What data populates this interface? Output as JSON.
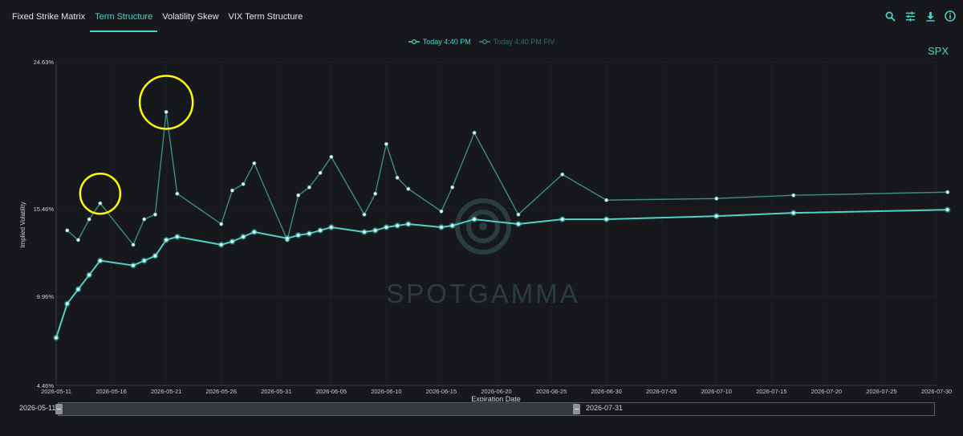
{
  "tabs": [
    {
      "label": "Fixed Strike Matrix",
      "active": false
    },
    {
      "label": "Term Structure",
      "active": true
    },
    {
      "label": "Volatility Skew",
      "active": false
    },
    {
      "label": "VIX Term Structure",
      "active": false
    }
  ],
  "toolbar": [
    "search-icon",
    "sliders-icon",
    "download-icon",
    "info-icon"
  ],
  "symbol": "SPX",
  "brush": {
    "start": "2026-05-11",
    "end": "2026-07-31",
    "selected_end": "2026-06-30"
  },
  "colors": {
    "accent": "#4fd1c5",
    "series_fixed": "#3d8d86",
    "marker": "#ffff00",
    "background": "#16181c"
  },
  "watermark": "SPOTGAMMA",
  "chart_data": {
    "type": "line",
    "xlabel": "Expiration Date",
    "ylabel": "Implied Volatility",
    "yticks": [
      "4.46%",
      "9.96%",
      "15.46%",
      "24.63%"
    ],
    "yvalues": [
      4.46,
      9.96,
      15.46,
      24.63
    ],
    "xticks": [
      "2026-05-11",
      "2026-05-16",
      "2026-05-21",
      "2026-05-26",
      "2026-05-31",
      "2026-06-05",
      "2026-06-10",
      "2026-06-15",
      "2026-06-20",
      "2026-06-25",
      "2026-06-30",
      "2026-07-05",
      "2026-07-10",
      "2026-07-15",
      "2026-07-20",
      "2026-07-25",
      "2026-07-30"
    ],
    "grid": true,
    "legend_position": "top-center",
    "series": [
      {
        "name": "Today 4:40 PM",
        "x": [
          "2026-05-11",
          "2026-05-12",
          "2026-05-13",
          "2026-05-14",
          "2026-05-15",
          "2026-05-18",
          "2026-05-19",
          "2026-05-20",
          "2026-05-21",
          "2026-05-22",
          "2026-05-26",
          "2026-05-27",
          "2026-05-28",
          "2026-05-29",
          "2026-06-01",
          "2026-06-02",
          "2026-06-03",
          "2026-06-04",
          "2026-06-05",
          "2026-06-08",
          "2026-06-09",
          "2026-06-10",
          "2026-06-11",
          "2026-06-12",
          "2026-06-15",
          "2026-06-16",
          "2026-06-18",
          "2026-06-22",
          "2026-06-26",
          "2026-06-30",
          "2026-07-10",
          "2026-07-17",
          "2026-07-31"
        ],
        "values": [
          7.4,
          9.5,
          10.4,
          11.3,
          12.2,
          11.9,
          12.2,
          12.5,
          13.5,
          13.7,
          13.2,
          13.4,
          13.7,
          14.0,
          13.6,
          13.8,
          13.9,
          14.1,
          14.3,
          14.0,
          14.1,
          14.3,
          14.4,
          14.5,
          14.3,
          14.4,
          14.8,
          14.5,
          14.8,
          14.8,
          15.0,
          15.2,
          15.4
        ]
      },
      {
        "name": "Today 4:40 PM FIV",
        "x": [
          "2026-05-12",
          "2026-05-13",
          "2026-05-14",
          "2026-05-15",
          "2026-05-18",
          "2026-05-19",
          "2026-05-20",
          "2026-05-21",
          "2026-05-22",
          "2026-05-26",
          "2026-05-27",
          "2026-05-28",
          "2026-05-29",
          "2026-06-01",
          "2026-06-02",
          "2026-06-03",
          "2026-06-04",
          "2026-06-05",
          "2026-06-08",
          "2026-06-09",
          "2026-06-10",
          "2026-06-11",
          "2026-06-12",
          "2026-06-15",
          "2026-06-16",
          "2026-06-18",
          "2026-06-22",
          "2026-06-26",
          "2026-06-30",
          "2026-07-10",
          "2026-07-17",
          "2026-07-31"
        ],
        "values": [
          14.1,
          13.5,
          14.8,
          15.8,
          13.2,
          14.8,
          15.1,
          21.5,
          16.4,
          14.5,
          16.6,
          17.0,
          18.3,
          13.5,
          16.3,
          16.8,
          17.7,
          18.7,
          15.1,
          16.4,
          19.5,
          17.4,
          16.7,
          15.3,
          16.8,
          20.2,
          15.1,
          17.6,
          16.0,
          16.1,
          16.3,
          16.5
        ]
      }
    ],
    "highlighted_points": [
      {
        "x": "2026-05-15",
        "y": 15.8
      },
      {
        "x": "2026-05-21",
        "y": 21.5
      }
    ]
  }
}
